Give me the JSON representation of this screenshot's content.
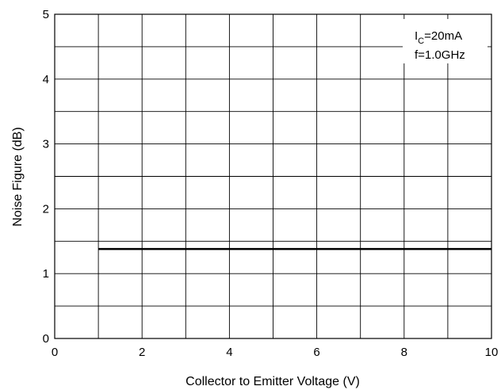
{
  "chart_data": {
    "type": "line",
    "title": "",
    "xlabel": "Collector to Emitter Voltage (V)",
    "ylabel": "Noise Figure (dB)",
    "xlim": [
      0,
      10
    ],
    "ylim": [
      0,
      5
    ],
    "x_ticks": [
      "0",
      "2",
      "4",
      "6",
      "8",
      "10"
    ],
    "y_ticks": [
      "0",
      "1",
      "2",
      "3",
      "4",
      "5"
    ],
    "grid": true,
    "series": [
      {
        "x": [
          1,
          10
        ],
        "y": [
          1.38,
          1.38
        ],
        "color": "#000000"
      }
    ],
    "annotation": {
      "ic_main": "I",
      "ic_sub": "C",
      "ic_rest": "=20mA",
      "freq": "f=1.0GHz"
    }
  }
}
